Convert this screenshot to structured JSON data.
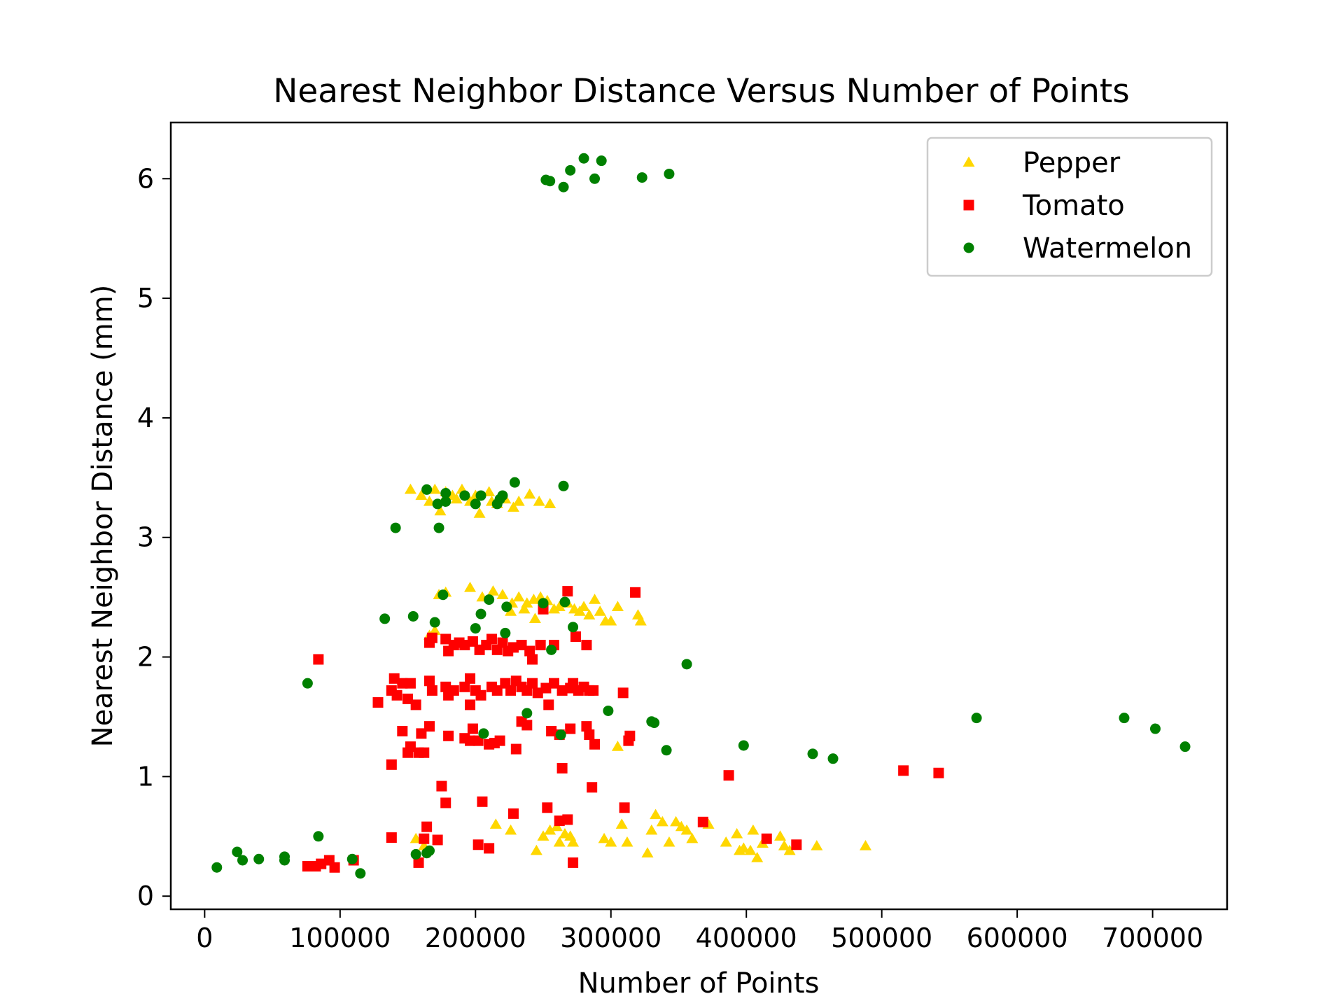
{
  "chart_data": {
    "type": "scatter",
    "title": "Nearest Neighbor Distance Versus Number of Points",
    "xlabel": "Number of Points",
    "ylabel": "Nearest Neighbor Distance (mm)",
    "xlim": [
      -25000,
      755000
    ],
    "ylim": [
      -0.11,
      6.47
    ],
    "xticks": [
      0,
      100000,
      200000,
      300000,
      400000,
      500000,
      600000,
      700000
    ],
    "yticks": [
      0,
      1,
      2,
      3,
      4,
      5,
      6
    ],
    "grid": false,
    "legend_position": "top-right",
    "series": [
      {
        "name": "Pepper",
        "marker": "triangle",
        "color": "#FFD700",
        "points": [
          [
            152000,
            3.4
          ],
          [
            160000,
            3.35
          ],
          [
            166000,
            3.3
          ],
          [
            170000,
            3.4
          ],
          [
            176000,
            3.3
          ],
          [
            178000,
            3.38
          ],
          [
            183000,
            3.35
          ],
          [
            186000,
            3.32
          ],
          [
            190000,
            3.4
          ],
          [
            196000,
            3.3
          ],
          [
            200000,
            3.35
          ],
          [
            203000,
            3.2
          ],
          [
            210000,
            3.38
          ],
          [
            216000,
            3.28
          ],
          [
            222000,
            3.32
          ],
          [
            228000,
            3.25
          ],
          [
            232000,
            3.3
          ],
          [
            240000,
            3.36
          ],
          [
            247000,
            3.3
          ],
          [
            255000,
            3.28
          ],
          [
            174000,
            3.22
          ],
          [
            212000,
            3.3
          ],
          [
            173000,
            2.52
          ],
          [
            178000,
            2.54
          ],
          [
            196000,
            2.58
          ],
          [
            205000,
            2.5
          ],
          [
            213000,
            2.55
          ],
          [
            220000,
            2.52
          ],
          [
            227000,
            2.45
          ],
          [
            232000,
            2.5
          ],
          [
            238000,
            2.45
          ],
          [
            243000,
            2.48
          ],
          [
            248000,
            2.5
          ],
          [
            253000,
            2.47
          ],
          [
            258000,
            2.4
          ],
          [
            262000,
            2.42
          ],
          [
            268000,
            2.45
          ],
          [
            273000,
            2.4
          ],
          [
            277000,
            2.38
          ],
          [
            280000,
            2.42
          ],
          [
            284000,
            2.35
          ],
          [
            288000,
            2.48
          ],
          [
            292000,
            2.38
          ],
          [
            296000,
            2.3
          ],
          [
            300000,
            2.3
          ],
          [
            305000,
            2.42
          ],
          [
            320000,
            2.35
          ],
          [
            322000,
            2.3
          ],
          [
            226000,
            2.38
          ],
          [
            244000,
            2.32
          ],
          [
            236000,
            2.4
          ],
          [
            166000,
            2.18
          ],
          [
            170000,
            2.22
          ],
          [
            156000,
            0.48
          ],
          [
            162000,
            0.42
          ],
          [
            215000,
            0.6
          ],
          [
            226000,
            0.55
          ],
          [
            245000,
            0.38
          ],
          [
            250000,
            0.5
          ],
          [
            255000,
            0.55
          ],
          [
            260000,
            0.58
          ],
          [
            262000,
            0.45
          ],
          [
            266000,
            0.52
          ],
          [
            270000,
            0.5
          ],
          [
            272000,
            0.45
          ],
          [
            295000,
            0.48
          ],
          [
            300000,
            0.45
          ],
          [
            305000,
            1.25
          ],
          [
            308000,
            0.6
          ],
          [
            312000,
            0.45
          ],
          [
            327000,
            0.36
          ],
          [
            330000,
            0.55
          ],
          [
            333000,
            0.68
          ],
          [
            338000,
            0.62
          ],
          [
            343000,
            0.45
          ],
          [
            348000,
            0.62
          ],
          [
            352000,
            0.58
          ],
          [
            356000,
            0.55
          ],
          [
            360000,
            0.48
          ],
          [
            372000,
            0.6
          ],
          [
            385000,
            0.45
          ],
          [
            393000,
            0.52
          ],
          [
            395000,
            0.38
          ],
          [
            398000,
            0.4
          ],
          [
            403000,
            0.38
          ],
          [
            405000,
            0.55
          ],
          [
            408000,
            0.32
          ],
          [
            412000,
            0.44
          ],
          [
            425000,
            0.5
          ],
          [
            428000,
            0.42
          ],
          [
            432000,
            0.38
          ],
          [
            452000,
            0.42
          ],
          [
            488000,
            0.42
          ]
        ]
      },
      {
        "name": "Tomato",
        "marker": "square",
        "color": "#FF0000",
        "points": [
          [
            76000,
            0.25
          ],
          [
            82000,
            0.25
          ],
          [
            86000,
            0.27
          ],
          [
            92000,
            0.3
          ],
          [
            96000,
            0.24
          ],
          [
            110000,
            0.3
          ],
          [
            84000,
            1.98
          ],
          [
            128000,
            1.62
          ],
          [
            138000,
            1.72
          ],
          [
            140000,
            1.82
          ],
          [
            142000,
            1.68
          ],
          [
            146000,
            1.78
          ],
          [
            150000,
            1.65
          ],
          [
            152000,
            1.78
          ],
          [
            156000,
            1.6
          ],
          [
            138000,
            1.1
          ],
          [
            138000,
            0.49
          ],
          [
            146000,
            1.38
          ],
          [
            150000,
            1.2
          ],
          [
            152000,
            1.25
          ],
          [
            158000,
            1.2
          ],
          [
            160000,
            1.36
          ],
          [
            162000,
            1.2
          ],
          [
            166000,
            1.42
          ],
          [
            166000,
            1.8
          ],
          [
            168000,
            1.72
          ],
          [
            166000,
            2.12
          ],
          [
            168000,
            2.16
          ],
          [
            175000,
            0.92
          ],
          [
            178000,
            0.78
          ],
          [
            172000,
            0.47
          ],
          [
            158000,
            0.28
          ],
          [
            162000,
            0.48
          ],
          [
            164000,
            0.58
          ],
          [
            178000,
            2.15
          ],
          [
            180000,
            2.05
          ],
          [
            184000,
            2.1
          ],
          [
            188000,
            2.12
          ],
          [
            192000,
            2.1
          ],
          [
            198000,
            2.13
          ],
          [
            203000,
            2.06
          ],
          [
            208000,
            2.1
          ],
          [
            212000,
            2.15
          ],
          [
            216000,
            2.06
          ],
          [
            220000,
            2.12
          ],
          [
            224000,
            2.05
          ],
          [
            228000,
            2.08
          ],
          [
            234000,
            2.1
          ],
          [
            240000,
            2.05
          ],
          [
            242000,
            1.98
          ],
          [
            248000,
            2.1
          ],
          [
            250000,
            2.4
          ],
          [
            258000,
            2.1
          ],
          [
            268000,
            2.55
          ],
          [
            274000,
            2.17
          ],
          [
            282000,
            2.1
          ],
          [
            318000,
            2.54
          ],
          [
            178000,
            1.75
          ],
          [
            180000,
            1.68
          ],
          [
            184000,
            1.72
          ],
          [
            192000,
            1.75
          ],
          [
            196000,
            1.6
          ],
          [
            196000,
            1.82
          ],
          [
            200000,
            1.72
          ],
          [
            204000,
            1.68
          ],
          [
            212000,
            1.75
          ],
          [
            216000,
            1.72
          ],
          [
            222000,
            1.78
          ],
          [
            226000,
            1.72
          ],
          [
            230000,
            1.8
          ],
          [
            234000,
            1.75
          ],
          [
            238000,
            1.72
          ],
          [
            242000,
            1.78
          ],
          [
            246000,
            1.7
          ],
          [
            252000,
            1.74
          ],
          [
            254000,
            1.6
          ],
          [
            258000,
            1.78
          ],
          [
            264000,
            1.72
          ],
          [
            270000,
            1.74
          ],
          [
            272000,
            1.78
          ],
          [
            276000,
            1.72
          ],
          [
            280000,
            1.75
          ],
          [
            284000,
            1.72
          ],
          [
            287000,
            1.72
          ],
          [
            309000,
            1.7
          ],
          [
            180000,
            1.34
          ],
          [
            192000,
            1.32
          ],
          [
            196000,
            1.3
          ],
          [
            198000,
            1.4
          ],
          [
            202000,
            1.3
          ],
          [
            210000,
            1.27
          ],
          [
            214000,
            1.28
          ],
          [
            218000,
            1.3
          ],
          [
            230000,
            1.23
          ],
          [
            234000,
            1.46
          ],
          [
            238000,
            1.43
          ],
          [
            256000,
            1.38
          ],
          [
            262000,
            1.35
          ],
          [
            270000,
            1.4
          ],
          [
            282000,
            1.42
          ],
          [
            284000,
            1.35
          ],
          [
            288000,
            1.27
          ],
          [
            313000,
            1.3
          ],
          [
            314000,
            1.34
          ],
          [
            202000,
            0.43
          ],
          [
            205000,
            0.79
          ],
          [
            210000,
            0.4
          ],
          [
            228000,
            0.69
          ],
          [
            253000,
            0.74
          ],
          [
            262000,
            0.63
          ],
          [
            264000,
            1.07
          ],
          [
            268000,
            0.64
          ],
          [
            272000,
            0.28
          ],
          [
            286000,
            0.91
          ],
          [
            310000,
            0.74
          ],
          [
            368000,
            0.62
          ],
          [
            387000,
            1.01
          ],
          [
            415000,
            0.48
          ],
          [
            437000,
            0.43
          ],
          [
            516000,
            1.05
          ],
          [
            542000,
            1.03
          ]
        ]
      },
      {
        "name": "Watermelon",
        "marker": "circle",
        "color": "#008000",
        "points": [
          [
            9000,
            0.24
          ],
          [
            24000,
            0.37
          ],
          [
            28000,
            0.3
          ],
          [
            40000,
            0.31
          ],
          [
            59000,
            0.3
          ],
          [
            59000,
            0.33
          ],
          [
            76000,
            1.78
          ],
          [
            84000,
            0.5
          ],
          [
            109000,
            0.31
          ],
          [
            115000,
            0.19
          ],
          [
            156000,
            0.35
          ],
          [
            164000,
            0.36
          ],
          [
            166000,
            0.38
          ],
          [
            133000,
            2.32
          ],
          [
            141000,
            3.08
          ],
          [
            154000,
            2.34
          ],
          [
            164000,
            3.4
          ],
          [
            170000,
            2.29
          ],
          [
            172000,
            3.28
          ],
          [
            173000,
            3.08
          ],
          [
            176000,
            2.52
          ],
          [
            178000,
            3.37
          ],
          [
            178000,
            3.3
          ],
          [
            192000,
            3.35
          ],
          [
            200000,
            3.28
          ],
          [
            200000,
            2.24
          ],
          [
            204000,
            3.35
          ],
          [
            204000,
            2.36
          ],
          [
            206000,
            1.36
          ],
          [
            210000,
            2.48
          ],
          [
            216000,
            3.28
          ],
          [
            218000,
            3.32
          ],
          [
            220000,
            3.35
          ],
          [
            222000,
            2.2
          ],
          [
            223000,
            2.42
          ],
          [
            229000,
            3.46
          ],
          [
            238000,
            1.53
          ],
          [
            250000,
            2.45
          ],
          [
            256000,
            2.06
          ],
          [
            263000,
            1.35
          ],
          [
            265000,
            3.43
          ],
          [
            266000,
            2.46
          ],
          [
            272000,
            2.25
          ],
          [
            298000,
            1.55
          ],
          [
            330000,
            1.46
          ],
          [
            332000,
            1.45
          ],
          [
            341000,
            1.22
          ],
          [
            356000,
            1.94
          ],
          [
            398000,
            1.26
          ],
          [
            449000,
            1.19
          ],
          [
            464000,
            1.15
          ],
          [
            570000,
            1.49
          ],
          [
            679000,
            1.49
          ],
          [
            702000,
            1.4
          ],
          [
            724000,
            1.25
          ],
          [
            252000,
            5.99
          ],
          [
            255000,
            5.98
          ],
          [
            265000,
            5.93
          ],
          [
            270000,
            6.07
          ],
          [
            280000,
            6.17
          ],
          [
            288000,
            6.0
          ],
          [
            293000,
            6.15
          ],
          [
            323000,
            6.01
          ],
          [
            343000,
            6.04
          ]
        ]
      }
    ]
  }
}
